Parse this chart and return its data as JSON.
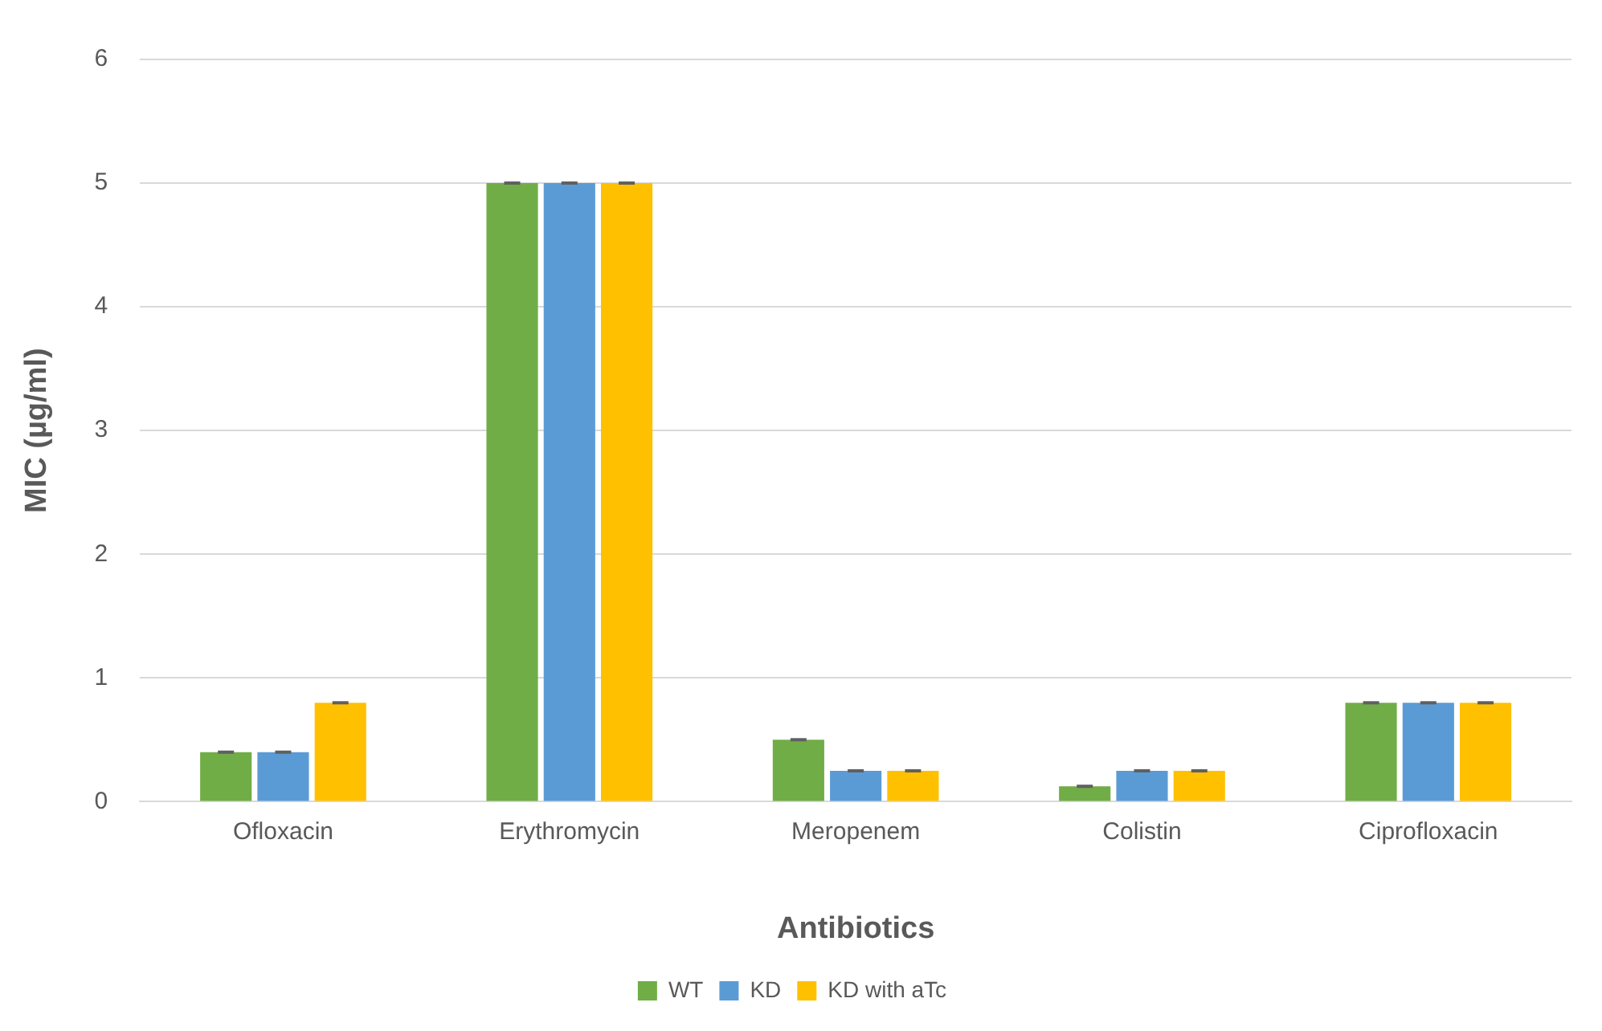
{
  "chart_data": {
    "type": "bar",
    "xlabel": "Antibiotics",
    "ylabel": "MIC (µg/ml)",
    "categories": [
      "Ofloxacin",
      "Erythromycin",
      "Meropenem",
      "Colistin",
      "Ciprofloxacin"
    ],
    "series": [
      {
        "name": "WT",
        "color": "#70ad47",
        "values": [
          0.4,
          5,
          0.5,
          0.125,
          0.8
        ],
        "errors": [
          0,
          0,
          0,
          0,
          0
        ]
      },
      {
        "name": "KD",
        "color": "#5b9bd5",
        "values": [
          0.4,
          5,
          0.25,
          0.25,
          0.8
        ],
        "errors": [
          0,
          0,
          0,
          0,
          0
        ]
      },
      {
        "name": "KD with aTc",
        "color": "#ffc000",
        "values": [
          0.8,
          5,
          0.25,
          0.25,
          0.8
        ],
        "errors": [
          0,
          0,
          0,
          0,
          0
        ]
      }
    ],
    "ylim": [
      0,
      6
    ],
    "yticks": [
      0,
      1,
      2,
      3,
      4,
      5,
      6
    ],
    "grid": "y",
    "legend": "bottom"
  }
}
